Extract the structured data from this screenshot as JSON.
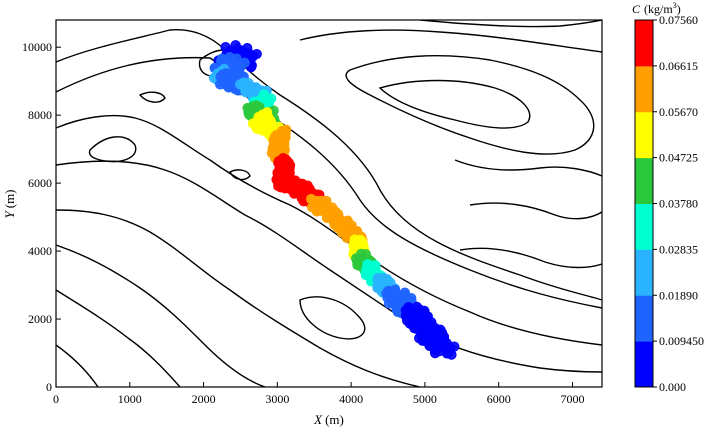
{
  "chart_data": {
    "type": "scatter",
    "xlabel_var": "X",
    "xlabel_unit": "(m)",
    "ylabel_var": "Y",
    "ylabel_unit": "(m)",
    "xlim": [
      0,
      7400
    ],
    "ylim": [
      0,
      10800
    ],
    "x_ticks": [
      "0",
      "1000",
      "2000",
      "3000",
      "4000",
      "5000",
      "6000",
      "7000"
    ],
    "y_ticks": [
      "0",
      "2000",
      "4000",
      "6000",
      "8000",
      "10000"
    ],
    "colorbar": {
      "title_var": "C",
      "title_unit": "(kg/m",
      "title_exp": "3",
      "title_close": ")",
      "range": [
        0,
        0.0756
      ],
      "ticks": [
        "0.000",
        "0.009450",
        "0.01890",
        "0.02835",
        "0.03780",
        "0.04725",
        "0.05670",
        "0.06615",
        "0.07560"
      ],
      "colors": [
        "#0000ff",
        "#1f64ff",
        "#2ab4ff",
        "#00ffd0",
        "#2cc83c",
        "#ffff00",
        "#ffa000",
        "#ff7a10",
        "#ff0000"
      ]
    },
    "contour_lines": true,
    "plume_points": [
      {
        "x": 2350,
        "y": 9850,
        "c": 0.004
      },
      {
        "x": 2600,
        "y": 9650,
        "c": 0.005
      },
      {
        "x": 2250,
        "y": 9500,
        "c": 0.009
      },
      {
        "x": 2450,
        "y": 9300,
        "c": 0.012
      },
      {
        "x": 2200,
        "y": 9150,
        "c": 0.02
      },
      {
        "x": 2400,
        "y": 8950,
        "c": 0.016
      },
      {
        "x": 2700,
        "y": 8700,
        "c": 0.024
      },
      {
        "x": 2850,
        "y": 8400,
        "c": 0.03
      },
      {
        "x": 2650,
        "y": 8100,
        "c": 0.04
      },
      {
        "x": 2900,
        "y": 7950,
        "c": 0.047
      },
      {
        "x": 2750,
        "y": 7700,
        "c": 0.052
      },
      {
        "x": 3050,
        "y": 7400,
        "c": 0.057
      },
      {
        "x": 3000,
        "y": 7000,
        "c": 0.064
      },
      {
        "x": 3100,
        "y": 6500,
        "c": 0.067
      },
      {
        "x": 3050,
        "y": 6050,
        "c": 0.0756
      },
      {
        "x": 3350,
        "y": 5800,
        "c": 0.071
      },
      {
        "x": 3550,
        "y": 5400,
        "c": 0.065
      },
      {
        "x": 3800,
        "y": 5000,
        "c": 0.063
      },
      {
        "x": 3950,
        "y": 4650,
        "c": 0.061
      },
      {
        "x": 4100,
        "y": 4300,
        "c": 0.057
      },
      {
        "x": 4100,
        "y": 3900,
        "c": 0.05
      },
      {
        "x": 4250,
        "y": 3500,
        "c": 0.037
      },
      {
        "x": 4350,
        "y": 3150,
        "c": 0.03
      },
      {
        "x": 4500,
        "y": 2900,
        "c": 0.022
      },
      {
        "x": 4600,
        "y": 2550,
        "c": 0.016
      },
      {
        "x": 4800,
        "y": 2250,
        "c": 0.01
      },
      {
        "x": 4950,
        "y": 1900,
        "c": 0.006
      },
      {
        "x": 5100,
        "y": 1500,
        "c": 0.004
      },
      {
        "x": 5300,
        "y": 1100,
        "c": 0.002
      }
    ]
  }
}
